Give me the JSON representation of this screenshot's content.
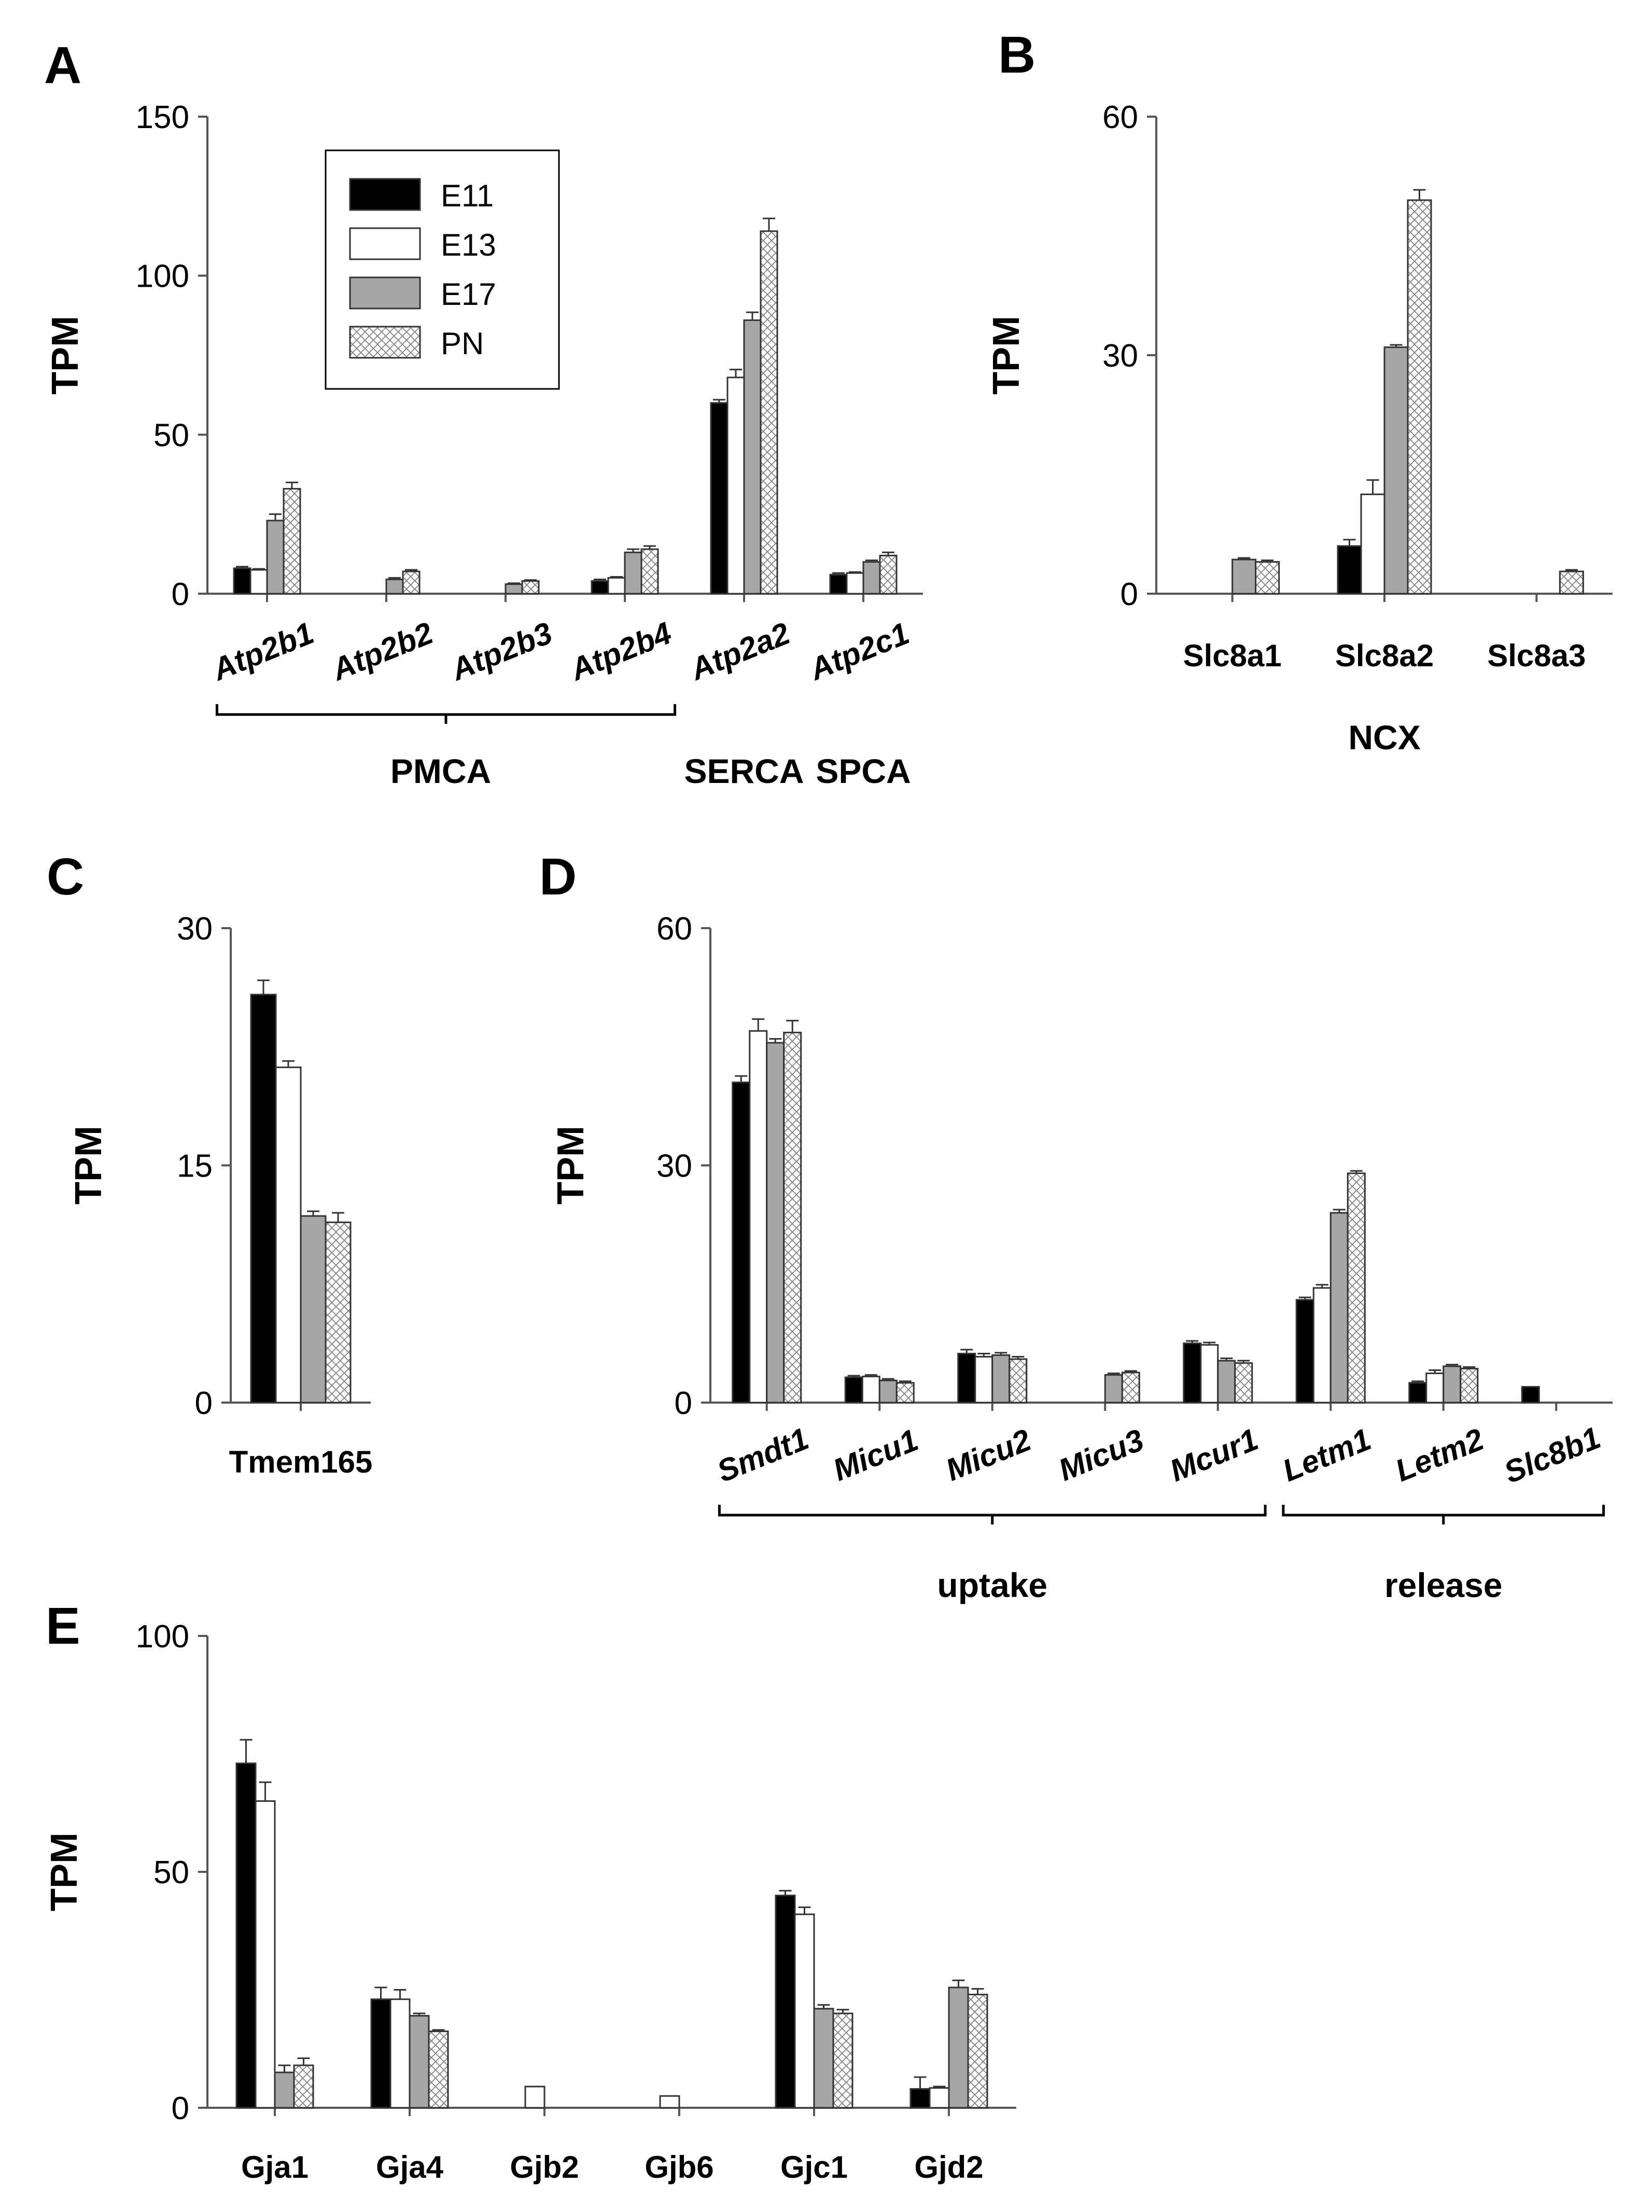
{
  "legend": {
    "entries": [
      "E11",
      "E13",
      "E17",
      "PN"
    ]
  },
  "series_colors": [
    "#000000",
    "#ffffff",
    "#a6a6a6",
    "pattern-crosshatch"
  ],
  "chart_data": [
    {
      "panel": "A",
      "type": "bar",
      "ylabel": "TPM",
      "ylim": [
        0,
        150
      ],
      "yticks": [
        0,
        50,
        100,
        150
      ],
      "categories": [
        "Atp2b1",
        "Atp2b2",
        "Atp2b3",
        "Atp2b4",
        "Atp2a2",
        "Atp2c1"
      ],
      "italic_categories": true,
      "series": [
        {
          "name": "E11",
          "values": [
            8,
            0,
            0,
            4,
            60,
            6
          ],
          "errors": [
            0.5,
            0,
            0,
            0.5,
            1,
            0.5
          ]
        },
        {
          "name": "E13",
          "values": [
            7.5,
            0,
            0,
            5,
            68,
            6.5
          ],
          "errors": [
            0.3,
            0,
            0,
            0.3,
            2.5,
            0.3
          ]
        },
        {
          "name": "E17",
          "values": [
            23,
            4.5,
            3,
            13,
            86,
            10
          ],
          "errors": [
            2,
            0.5,
            0.3,
            1,
            2.5,
            0.5
          ]
        },
        {
          "name": "PN",
          "values": [
            33,
            7,
            4,
            14,
            114,
            12
          ],
          "errors": [
            2,
            0.5,
            0.3,
            1,
            4,
            1
          ]
        }
      ],
      "groups": [
        {
          "label": "PMCA",
          "from": 0,
          "to": 3,
          "bracket": true
        },
        {
          "label": "SERCA",
          "from": 4,
          "to": 4,
          "bracket": false
        },
        {
          "label": "SPCA",
          "from": 5,
          "to": 5,
          "bracket": false
        }
      ]
    },
    {
      "panel": "B",
      "type": "bar",
      "ylabel": "TPM",
      "ylim": [
        0,
        60
      ],
      "yticks": [
        0,
        30,
        60
      ],
      "categories": [
        "Slc8a1",
        "Slc8a2",
        "Slc8a3"
      ],
      "series": [
        {
          "name": "E11",
          "values": [
            0,
            6,
            0
          ],
          "errors": [
            0,
            0.8,
            0
          ]
        },
        {
          "name": "E13",
          "values": [
            0,
            12.5,
            0
          ],
          "errors": [
            0,
            1.8,
            0
          ]
        },
        {
          "name": "E17",
          "values": [
            4.3,
            31,
            0
          ],
          "errors": [
            0.2,
            0.3,
            0
          ]
        },
        {
          "name": "PN",
          "values": [
            4,
            49.5,
            2.8
          ],
          "errors": [
            0.2,
            1.3,
            0.2
          ]
        }
      ],
      "groups": [
        {
          "label": "NCX",
          "from": 0,
          "to": 2,
          "bracket": false
        }
      ]
    },
    {
      "panel": "C",
      "type": "bar",
      "ylabel": "TPM",
      "ylim": [
        0,
        30
      ],
      "yticks": [
        0,
        15,
        30
      ],
      "categories": [
        "Tmem165"
      ],
      "series": [
        {
          "name": "E11",
          "values": [
            25.8
          ],
          "errors": [
            0.9
          ]
        },
        {
          "name": "E13",
          "values": [
            21.2
          ],
          "errors": [
            0.4
          ]
        },
        {
          "name": "E17",
          "values": [
            11.8
          ],
          "errors": [
            0.3
          ]
        },
        {
          "name": "PN",
          "values": [
            11.4
          ],
          "errors": [
            0.6
          ]
        }
      ]
    },
    {
      "panel": "D",
      "type": "bar",
      "ylabel": "TPM",
      "ylim": [
        0,
        60
      ],
      "yticks": [
        0,
        30,
        60
      ],
      "categories": [
        "Smdt1",
        "Micu1",
        "Micu2",
        "Micu3",
        "Mcur1",
        "Letm1",
        "Letm2",
        "Slc8b1"
      ],
      "italic_categories": true,
      "series": [
        {
          "name": "E11",
          "values": [
            40.5,
            3.2,
            6.2,
            0,
            7.5,
            13,
            2.5,
            2
          ],
          "errors": [
            0.8,
            0.2,
            0.5,
            0,
            0.3,
            0.3,
            0.2,
            0
          ]
        },
        {
          "name": "E13",
          "values": [
            47,
            3.3,
            5.8,
            0,
            7.3,
            14.5,
            3.7,
            0
          ],
          "errors": [
            1.5,
            0.2,
            0.4,
            0,
            0.3,
            0.4,
            0.4,
            0
          ]
        },
        {
          "name": "E17",
          "values": [
            45.5,
            2.8,
            6,
            3.5,
            5.3,
            24,
            4.6,
            0
          ],
          "errors": [
            0.5,
            0.2,
            0.3,
            0.2,
            0.3,
            0.4,
            0.2,
            0
          ]
        },
        {
          "name": "PN",
          "values": [
            46.8,
            2.5,
            5.5,
            3.8,
            5,
            29,
            4.3,
            0
          ],
          "errors": [
            1.5,
            0.2,
            0.3,
            0.2,
            0.3,
            0.3,
            0.2,
            0
          ]
        }
      ],
      "groups": [
        {
          "label": "uptake",
          "from": 0,
          "to": 4,
          "bracket": true
        },
        {
          "label": "release",
          "from": 5,
          "to": 7,
          "bracket": true
        }
      ]
    },
    {
      "panel": "E",
      "type": "bar",
      "ylabel": "TPM",
      "ylim": [
        0,
        100
      ],
      "yticks": [
        0,
        50,
        100
      ],
      "categories": [
        "Gja1",
        "Gja4",
        "Gjb2",
        "Gjb6",
        "Gjc1",
        "Gjd2"
      ],
      "series": [
        {
          "name": "E11",
          "values": [
            73,
            23,
            0,
            0,
            45,
            4
          ],
          "errors": [
            5,
            2.5,
            0,
            0,
            1,
            2.5
          ]
        },
        {
          "name": "E13",
          "values": [
            65,
            23,
            4.5,
            2.5,
            41,
            4.2
          ],
          "errors": [
            4,
            2,
            0,
            0,
            1.5,
            0.3
          ]
        },
        {
          "name": "E17",
          "values": [
            7.5,
            19.5,
            0,
            0,
            21,
            25.5
          ],
          "errors": [
            1.5,
            0.5,
            0,
            0,
            0.8,
            1.5
          ]
        },
        {
          "name": "PN",
          "values": [
            9,
            16.2,
            0,
            0,
            20,
            24
          ],
          "errors": [
            1.5,
            0.3,
            0,
            0,
            0.8,
            1.2
          ]
        }
      ]
    }
  ]
}
